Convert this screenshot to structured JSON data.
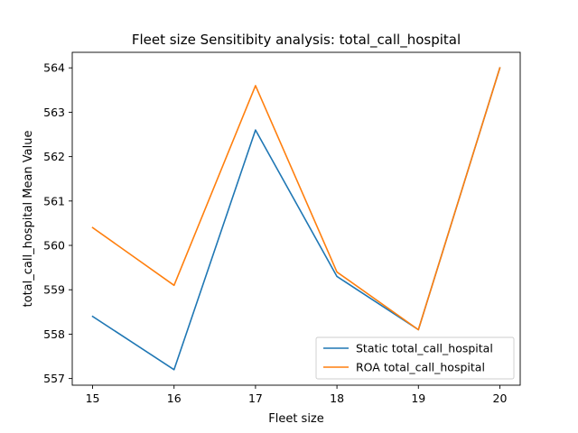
{
  "chart_data": {
    "type": "line",
    "title": "Fleet size Sensitibity analysis: total_call_hospital",
    "xlabel": "Fleet size",
    "ylabel": "total_call_hospital Mean Value",
    "x": [
      15,
      16,
      17,
      18,
      19,
      20
    ],
    "xticks": [
      "15",
      "16",
      "17",
      "18",
      "19",
      "20"
    ],
    "yticks": [
      "557",
      "558",
      "559",
      "560",
      "561",
      "562",
      "563",
      "564"
    ],
    "xlim": [
      14.75,
      20.25
    ],
    "ylim": [
      556.85,
      564.35
    ],
    "grid": false,
    "legend_position": "lower-right",
    "series": [
      {
        "name": "Static total_call_hospital",
        "color": "#1f77b4",
        "values": [
          558.4,
          557.2,
          562.6,
          559.3,
          558.1,
          564.0
        ]
      },
      {
        "name": "ROA total_call_hospital",
        "color": "#ff7f0e",
        "values": [
          560.4,
          559.1,
          563.6,
          559.4,
          558.1,
          564.0
        ]
      }
    ]
  }
}
